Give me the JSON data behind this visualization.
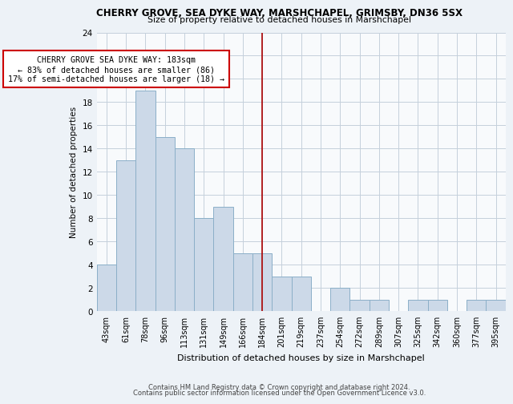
{
  "title": "CHERRY GROVE, SEA DYKE WAY, MARSHCHAPEL, GRIMSBY, DN36 5SX",
  "subtitle": "Size of property relative to detached houses in Marshchapel",
  "xlabel": "Distribution of detached houses by size in Marshchapel",
  "ylabel": "Number of detached properties",
  "bar_labels": [
    "43sqm",
    "61sqm",
    "78sqm",
    "96sqm",
    "113sqm",
    "131sqm",
    "149sqm",
    "166sqm",
    "184sqm",
    "201sqm",
    "219sqm",
    "237sqm",
    "254sqm",
    "272sqm",
    "289sqm",
    "307sqm",
    "325sqm",
    "342sqm",
    "360sqm",
    "377sqm",
    "395sqm"
  ],
  "bar_values": [
    4,
    13,
    19,
    15,
    14,
    8,
    9,
    5,
    5,
    3,
    3,
    0,
    2,
    1,
    1,
    0,
    1,
    1,
    0,
    1,
    1
  ],
  "bar_color": "#ccd9e8",
  "bar_edge_color": "#8bafc8",
  "vline_color": "#aa0000",
  "annotation_title": "CHERRY GROVE SEA DYKE WAY: 183sqm",
  "annotation_line1": "← 83% of detached houses are smaller (86)",
  "annotation_line2": "17% of semi-detached houses are larger (18) →",
  "ylim": [
    0,
    24
  ],
  "yticks": [
    0,
    2,
    4,
    6,
    8,
    10,
    12,
    14,
    16,
    18,
    20,
    22,
    24
  ],
  "footer1": "Contains HM Land Registry data © Crown copyright and database right 2024.",
  "footer2": "Contains public sector information licensed under the Open Government Licence v3.0.",
  "bg_color": "#edf2f7",
  "plot_bg_color": "#f8fafc",
  "grid_color": "#c5d0dc"
}
